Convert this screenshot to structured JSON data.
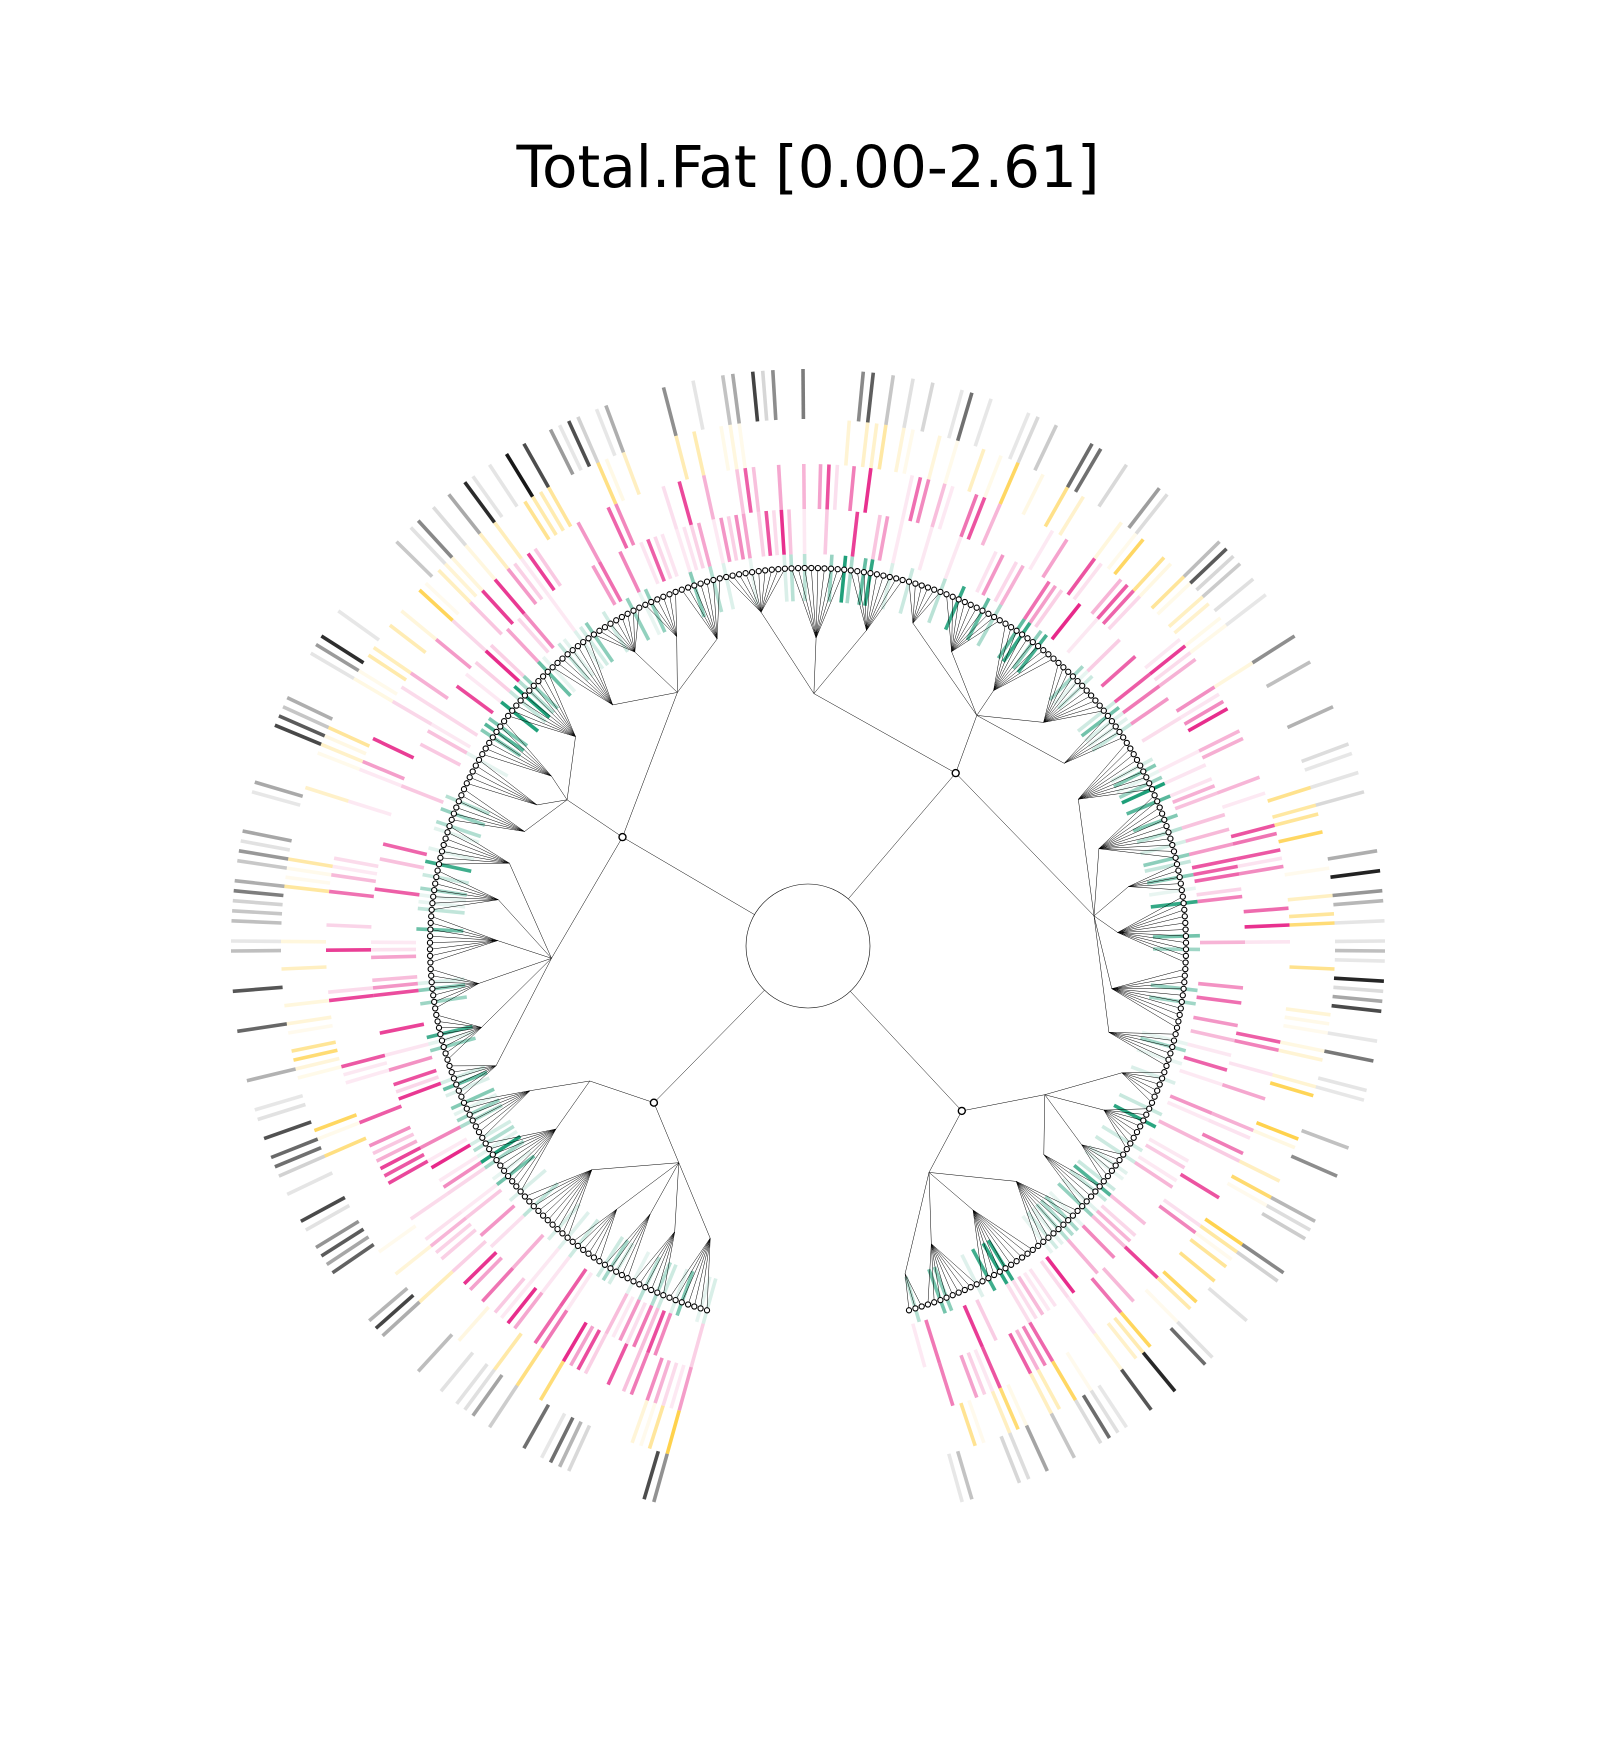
{
  "chart_data": {
    "type": "circular-tree-heatmap",
    "title": "Total.Fat [0.00-2.61]",
    "arc_start_deg": 195,
    "arc_span_deg": 330,
    "leaf_count": 330,
    "rings": [
      {
        "name": "",
        "color": "#1b9e77",
        "seed": 11,
        "density": 0.45
      },
      {
        "name": "",
        "color": "#e7298a",
        "seed": 23,
        "density": 0.42
      },
      {
        "name": "",
        "color": "#e7298a",
        "seed": 37,
        "density": 0.38
      },
      {
        "name": "",
        "color": "#ffd24d",
        "seed": 41,
        "density": 0.35
      },
      {
        "name": "",
        "color": "#111111",
        "seed": 59,
        "density": 0.42
      }
    ],
    "grid": false
  }
}
